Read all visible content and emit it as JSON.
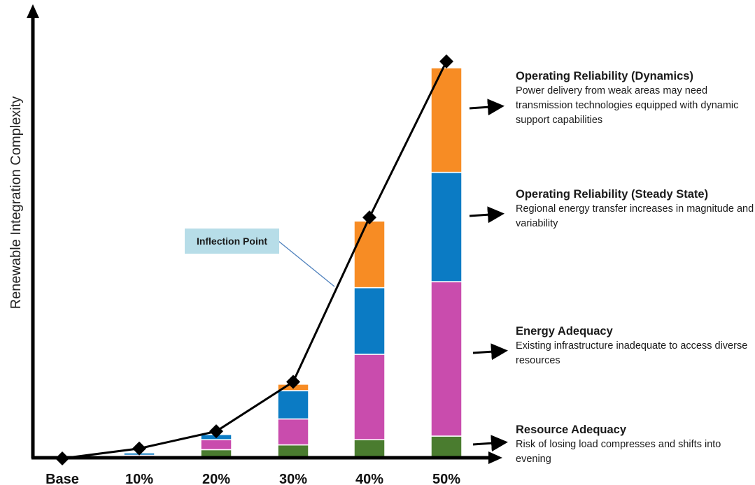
{
  "chart_data": {
    "type": "bar",
    "stacked": true,
    "ylabel": "Renewable Integration Complexity",
    "xlabel": "",
    "categories": [
      "Base",
      "10%",
      "20%",
      "30%",
      "40%",
      "50%"
    ],
    "series": [
      {
        "name": "Resource Adequacy",
        "color": "#4a7c2f",
        "values": [
          0,
          0.3,
          2.2,
          3.4,
          4.7,
          5.6
        ]
      },
      {
        "name": "Energy Adequacy",
        "color": "#c94cad",
        "values": [
          0,
          0.5,
          2.5,
          6.5,
          21.4,
          38.7
        ]
      },
      {
        "name": "Operating Reliability (Steady State)",
        "color": "#0b7bc4",
        "values": [
          0,
          0.6,
          1.3,
          7.1,
          16.7,
          27.4
        ]
      },
      {
        "name": "Operating Reliability (Dynamics)",
        "color": "#f78c24",
        "values": [
          0,
          0,
          0,
          1.6,
          16.7,
          26.2
        ]
      }
    ],
    "line": {
      "values": [
        0,
        2.5,
        6.8,
        19.2,
        60.4,
        99.5
      ]
    },
    "ylim": [
      0,
      100
    ],
    "grid": false
  },
  "callout": {
    "label": "Inflection Point"
  },
  "annotations": [
    {
      "title": "Operating Reliability (Dynamics)",
      "body": "Power delivery from weak areas may need transmission technologies equipped with dynamic support capabilities"
    },
    {
      "title": "Operating Reliability (Steady State)",
      "body": "Regional energy transfer increases in magnitude and variability"
    },
    {
      "title": "Energy Adequacy",
      "body": "Existing infrastructure inadequate to access diverse resources"
    },
    {
      "title": "Resource Adequacy",
      "body": "Risk of losing load compresses and shifts into evening"
    }
  ]
}
